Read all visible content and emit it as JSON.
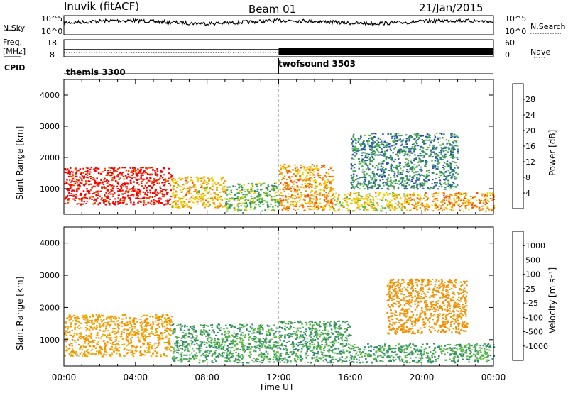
{
  "header": {
    "station": "Inuvik (fitACF)",
    "beam": "Beam 01",
    "date": "21/Jan/2015"
  },
  "top_panels": {
    "nsky_label": "N.Sky",
    "nsky_ticks": [
      "10^5",
      "10^0"
    ],
    "nsearch_label": "N.Search",
    "nsearch_ticks": [
      "10^5",
      "10^0"
    ],
    "freq_label": "Freq.",
    "freq_unit": "[MHz]",
    "freq_ticks": [
      "18",
      "8"
    ],
    "nave_label": "Nave",
    "nave_ticks": [
      "60",
      "0"
    ],
    "cpid_label": "CPID",
    "cpid_segments": [
      {
        "name": "themis 3300",
        "start_hour": 0,
        "end_hour": 12
      },
      {
        "name": "twofsound 3503",
        "start_hour": 12,
        "end_hour": 24
      }
    ]
  },
  "chart_data": [
    {
      "type": "heatmap",
      "panel": "power",
      "ylabel": "Slant Range [km]",
      "ylim": [
        180,
        4500
      ],
      "yticks": [
        1000,
        2000,
        3000,
        4000
      ],
      "xlim": [
        0,
        24
      ],
      "colorbar": {
        "label": "Power [dB]",
        "ticks": [
          "28",
          "24",
          "20",
          "16",
          "12",
          "8",
          "4"
        ],
        "colors": [
          "#0000f0",
          "#2a4fb0",
          "#2e8a6a",
          "#55b840",
          "#f0d000",
          "#f09000",
          "#f05000",
          "#f00000"
        ]
      },
      "regions": [
        {
          "x": [
            0.0,
            6.0
          ],
          "y": [
            500,
            1700
          ],
          "value": 30
        },
        {
          "x": [
            6.0,
            9.0
          ],
          "y": [
            400,
            1400
          ],
          "value": 20
        },
        {
          "x": [
            9.0,
            12.0
          ],
          "y": [
            300,
            1200
          ],
          "value": 14
        },
        {
          "x": [
            12.0,
            15.0
          ],
          "y": [
            300,
            1800
          ],
          "value": 22
        },
        {
          "x": [
            15.0,
            19.0
          ],
          "y": [
            300,
            900
          ],
          "value": 18
        },
        {
          "x": [
            19.0,
            24.0
          ],
          "y": [
            300,
            900
          ],
          "value": 22
        },
        {
          "x": [
            16.0,
            22.0
          ],
          "y": [
            1000,
            2800
          ],
          "value": 10
        }
      ]
    },
    {
      "type": "heatmap",
      "panel": "velocity",
      "ylabel": "Slant Range [km]",
      "xlabel": "Time UT",
      "ylim": [
        180,
        4500
      ],
      "yticks": [
        1000,
        2000,
        3000,
        4000
      ],
      "xlim": [
        0,
        24
      ],
      "xticks": [
        "00:00",
        "04:00",
        "08:00",
        "12:00",
        "16:00",
        "20:00",
        "00:00"
      ],
      "colorbar": {
        "label": "Velocity [m s⁻¹]",
        "ticks": [
          "1000",
          "500",
          "100",
          "25",
          "-25",
          "-100",
          "-500",
          "-1000"
        ],
        "colors": [
          "#f00000",
          "#f05000",
          "#f09000",
          "#f0a800",
          "#c8c8c8",
          "#55b840",
          "#2e8a6a",
          "#2a6a9a",
          "#2a4fb0"
        ]
      },
      "regions": [
        {
          "x": [
            0.0,
            6.0
          ],
          "y": [
            500,
            1800
          ],
          "value": -100
        },
        {
          "x": [
            6.0,
            12.0
          ],
          "y": [
            300,
            1500
          ],
          "value": 100
        },
        {
          "x": [
            12.0,
            16.0
          ],
          "y": [
            300,
            1600
          ],
          "value": 100
        },
        {
          "x": [
            16.0,
            24.0
          ],
          "y": [
            300,
            900
          ],
          "value": 100
        },
        {
          "x": [
            18.0,
            22.5
          ],
          "y": [
            1200,
            2900
          ],
          "value": -300
        }
      ]
    }
  ]
}
